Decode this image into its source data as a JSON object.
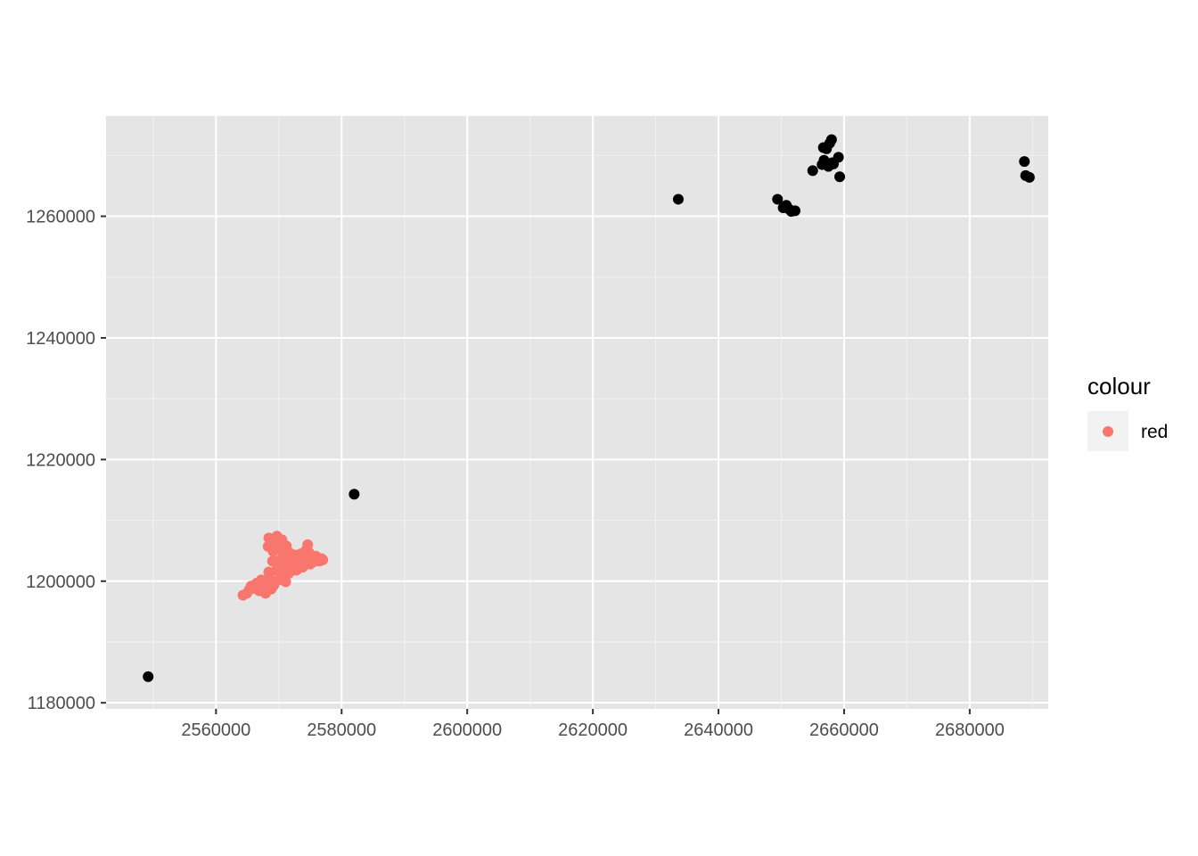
{
  "chart_data": {
    "type": "scatter",
    "title": "",
    "xlabel": "",
    "ylabel": "",
    "xlim": [
      2542500,
      2692500
    ],
    "ylim": [
      1179000,
      1276500
    ],
    "x_ticks": [
      2560000,
      2580000,
      2600000,
      2620000,
      2640000,
      2660000,
      2680000
    ],
    "y_ticks": [
      1180000,
      1200000,
      1220000,
      1240000,
      1260000
    ],
    "x_tick_labels": [
      "2560000",
      "2580000",
      "2600000",
      "2620000",
      "2640000",
      "2660000",
      "2680000"
    ],
    "y_tick_labels": [
      "1180000",
      "1200000",
      "1220000",
      "1240000",
      "1260000"
    ],
    "grid": true,
    "panel_background": "#e5e5e5",
    "legend": {
      "title": "colour",
      "position": "right",
      "entries": [
        {
          "label": "red",
          "color": "#f8766d"
        }
      ]
    },
    "series": [
      {
        "name": "",
        "color": "#000000",
        "in_legend": false,
        "points": [
          [
            2549200,
            1184300
          ],
          [
            2582000,
            1214300
          ],
          [
            2633600,
            1262800
          ],
          [
            2649400,
            1262800
          ],
          [
            2650300,
            1261400
          ],
          [
            2650800,
            1261800
          ],
          [
            2651200,
            1261200
          ],
          [
            2651600,
            1260800
          ],
          [
            2652200,
            1260900
          ],
          [
            2655000,
            1267500
          ],
          [
            2656500,
            1268500
          ],
          [
            2656800,
            1269200
          ],
          [
            2656700,
            1271300
          ],
          [
            2657200,
            1271100
          ],
          [
            2657500,
            1268200
          ],
          [
            2657700,
            1272000
          ],
          [
            2658000,
            1272600
          ],
          [
            2658100,
            1268800
          ],
          [
            2658300,
            1268600
          ],
          [
            2659100,
            1269700
          ],
          [
            2659300,
            1266500
          ],
          [
            2688700,
            1269000
          ],
          [
            2688900,
            1266700
          ],
          [
            2689500,
            1266400
          ]
        ]
      },
      {
        "name": "red",
        "color": "#f8766d",
        "in_legend": true,
        "points": [
          [
            2564300,
            1197700
          ],
          [
            2564900,
            1198000
          ],
          [
            2565300,
            1198600
          ],
          [
            2565600,
            1199200
          ],
          [
            2566100,
            1198800
          ],
          [
            2566500,
            1199700
          ],
          [
            2566900,
            1198400
          ],
          [
            2567200,
            1200200
          ],
          [
            2567600,
            1199000
          ],
          [
            2567900,
            1198000
          ],
          [
            2568200,
            1199500
          ],
          [
            2568400,
            1201500
          ],
          [
            2568500,
            1200600
          ],
          [
            2568300,
            1205700
          ],
          [
            2568400,
            1207100
          ],
          [
            2568800,
            1198700
          ],
          [
            2569000,
            1203300
          ],
          [
            2569100,
            1204900
          ],
          [
            2569200,
            1199300
          ],
          [
            2569400,
            1206300
          ],
          [
            2569600,
            1201800
          ],
          [
            2569700,
            1207400
          ],
          [
            2569900,
            1202700
          ],
          [
            2570000,
            1200200
          ],
          [
            2570200,
            1205300
          ],
          [
            2570300,
            1203600
          ],
          [
            2570500,
            1206800
          ],
          [
            2570600,
            1201000
          ],
          [
            2570800,
            1204200
          ],
          [
            2571000,
            1202200
          ],
          [
            2571100,
            1199900
          ],
          [
            2571200,
            1205800
          ],
          [
            2571400,
            1203000
          ],
          [
            2571600,
            1201300
          ],
          [
            2571800,
            1204600
          ],
          [
            2572000,
            1202500
          ],
          [
            2572200,
            1203900
          ],
          [
            2572400,
            1202000
          ],
          [
            2572600,
            1204300
          ],
          [
            2572800,
            1201800
          ],
          [
            2573000,
            1203200
          ],
          [
            2573300,
            1202800
          ],
          [
            2573500,
            1204500
          ],
          [
            2573800,
            1202300
          ],
          [
            2574100,
            1203400
          ],
          [
            2574400,
            1205200
          ],
          [
            2574600,
            1206000
          ],
          [
            2574800,
            1204700
          ],
          [
            2575000,
            1202800
          ],
          [
            2575300,
            1203900
          ],
          [
            2575600,
            1203200
          ],
          [
            2575900,
            1204100
          ],
          [
            2576200,
            1203600
          ],
          [
            2576500,
            1203300
          ],
          [
            2576800,
            1203700
          ],
          [
            2577000,
            1203500
          ]
        ]
      }
    ]
  }
}
